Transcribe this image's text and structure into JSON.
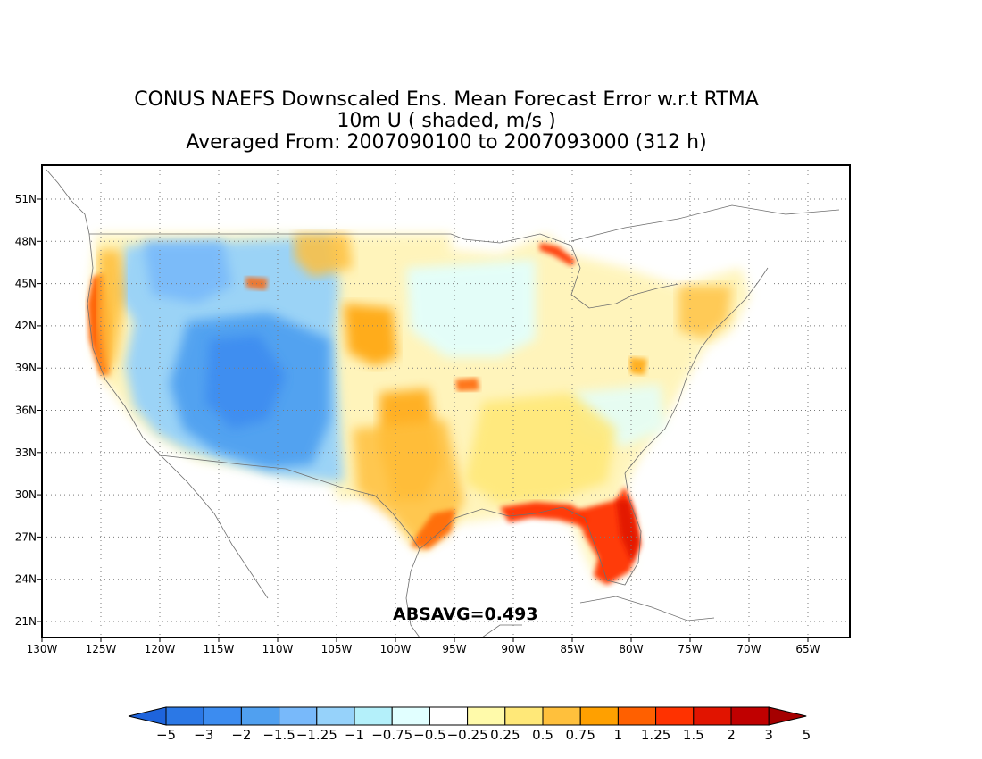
{
  "title": {
    "line1": "CONUS NAEFS Downscaled Ens. Mean Forecast Error w.r.t RTMA",
    "line2": "10m U ( shaded, m/s )",
    "line3": "Averaged From: 2007090100 to 2007093000 (312 h)"
  },
  "map": {
    "region": "CONUS",
    "lat_labels": [
      "51N",
      "48N",
      "45N",
      "42N",
      "39N",
      "36N",
      "33N",
      "30N",
      "27N",
      "24N",
      "21N"
    ],
    "lon_labels": [
      "130W",
      "125W",
      "120W",
      "115W",
      "110W",
      "105W",
      "100W",
      "95W",
      "90W",
      "85W",
      "80W",
      "75W",
      "70W",
      "65W"
    ],
    "stat_label": "ABSAVG=0.493"
  },
  "colorbar": {
    "labels": [
      "-5",
      "-3",
      "-2",
      "-1.5",
      "-1.25",
      "-1",
      "-0.75",
      "-0.5",
      "-0.25",
      "0.25",
      "0.5",
      "0.75",
      "1",
      "1.25",
      "1.5",
      "2",
      "3",
      "5"
    ],
    "colors": [
      "#1e64dc",
      "#2b78e6",
      "#3c8cf0",
      "#50a0f0",
      "#78b9fa",
      "#96d2fa",
      "#b4f0fa",
      "#e1ffff",
      "#ffffff",
      "#fffaaa",
      "#ffe878",
      "#ffc03c",
      "#ffa000",
      "#ff6000",
      "#ff3200",
      "#e11400",
      "#c00000",
      "#a50000"
    ]
  }
}
